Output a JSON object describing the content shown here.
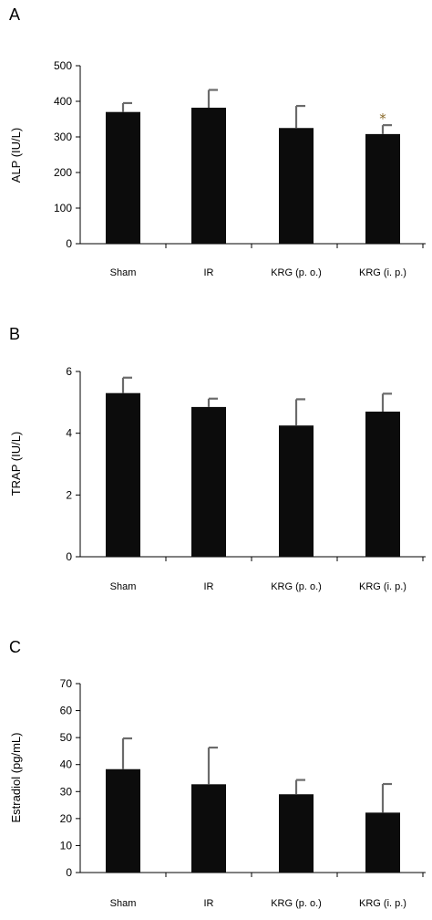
{
  "chart_data": [
    {
      "type": "bar",
      "panel": "A",
      "categories": [
        "Sham",
        "IR",
        "KRG (p. o.)",
        "KRG (i. p.)"
      ],
      "values": [
        370,
        382,
        325,
        308
      ],
      "errors": [
        25,
        50,
        62,
        25
      ],
      "ylabel": "ALP (IU/L)",
      "ylim": [
        0,
        500
      ],
      "yticks": [
        0,
        100,
        200,
        300,
        400,
        500
      ],
      "annotations": [
        {
          "category": "KRG (i. p.)",
          "text": "*"
        }
      ],
      "grid": false
    },
    {
      "type": "bar",
      "panel": "B",
      "categories": [
        "Sham",
        "IR",
        "KRG (p. o.)",
        "KRG (i. p.)"
      ],
      "values": [
        5.3,
        4.85,
        4.25,
        4.7
      ],
      "errors": [
        0.5,
        0.27,
        0.85,
        0.58
      ],
      "ylabel": "TRAP (IU/L)",
      "ylim": [
        0,
        6
      ],
      "yticks": [
        0,
        2,
        4,
        6
      ],
      "annotations": [],
      "grid": false
    },
    {
      "type": "bar",
      "panel": "C",
      "categories": [
        "Sham",
        "IR",
        "KRG (p. o.)",
        "KRG (i. p.)"
      ],
      "values": [
        38.3,
        32.7,
        29,
        22.2
      ],
      "errors": [
        11.4,
        13.6,
        5.3,
        10.6
      ],
      "ylabel": "Estradiol (pg/mL)",
      "ylim": [
        0,
        70
      ],
      "yticks": [
        0,
        10,
        20,
        30,
        40,
        50,
        60,
        70
      ],
      "annotations": [],
      "grid": false
    }
  ],
  "colors": {
    "bar": "#0c0c0c",
    "error_bar": "#6b6b6b",
    "annotation": "#8a6a2a"
  }
}
